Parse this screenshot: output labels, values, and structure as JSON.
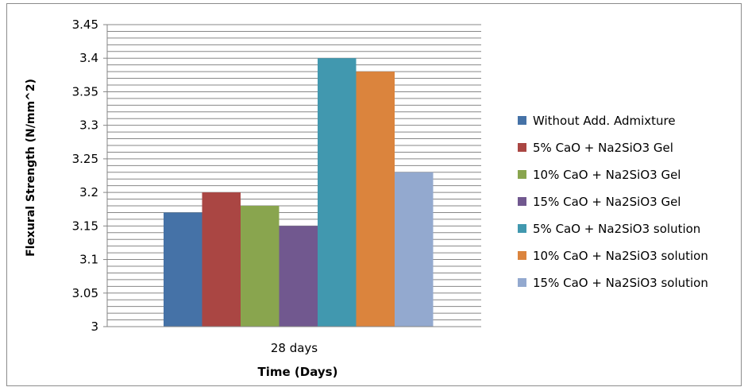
{
  "chart_data": {
    "type": "bar",
    "title": "",
    "xlabel": "Time (Days)",
    "ylabel": "Flexural Strength (N/mm^2)",
    "ylim": [
      3,
      3.45
    ],
    "y_ticks": [
      "3",
      "3.05",
      "3.1",
      "3.15",
      "3.2",
      "3.25",
      "3.3",
      "3.35",
      "3.4",
      "3.45"
    ],
    "grid": true,
    "legend_position": "right",
    "categories": [
      "28 days"
    ],
    "series": [
      {
        "name": "Without Add. Admixture",
        "values": [
          3.17
        ],
        "color": "#4572A7"
      },
      {
        "name": "5% CaO + Na2SiO3 Gel",
        "values": [
          3.2
        ],
        "color": "#AA4643"
      },
      {
        "name": "10% CaO + Na2SiO3 Gel",
        "values": [
          3.18
        ],
        "color": "#89A54E"
      },
      {
        "name": "15% CaO + Na2SiO3 Gel",
        "values": [
          3.15
        ],
        "color": "#71588F"
      },
      {
        "name": "5% CaO + Na2SiO3 solution",
        "values": [
          3.4
        ],
        "color": "#4198AF"
      },
      {
        "name": "10% CaO + Na2SiO3 solution",
        "values": [
          3.38
        ],
        "color": "#DB843D"
      },
      {
        "name": "15% CaO + Na2SiO3 solution",
        "values": [
          3.23
        ],
        "color": "#93A9CF"
      }
    ]
  }
}
